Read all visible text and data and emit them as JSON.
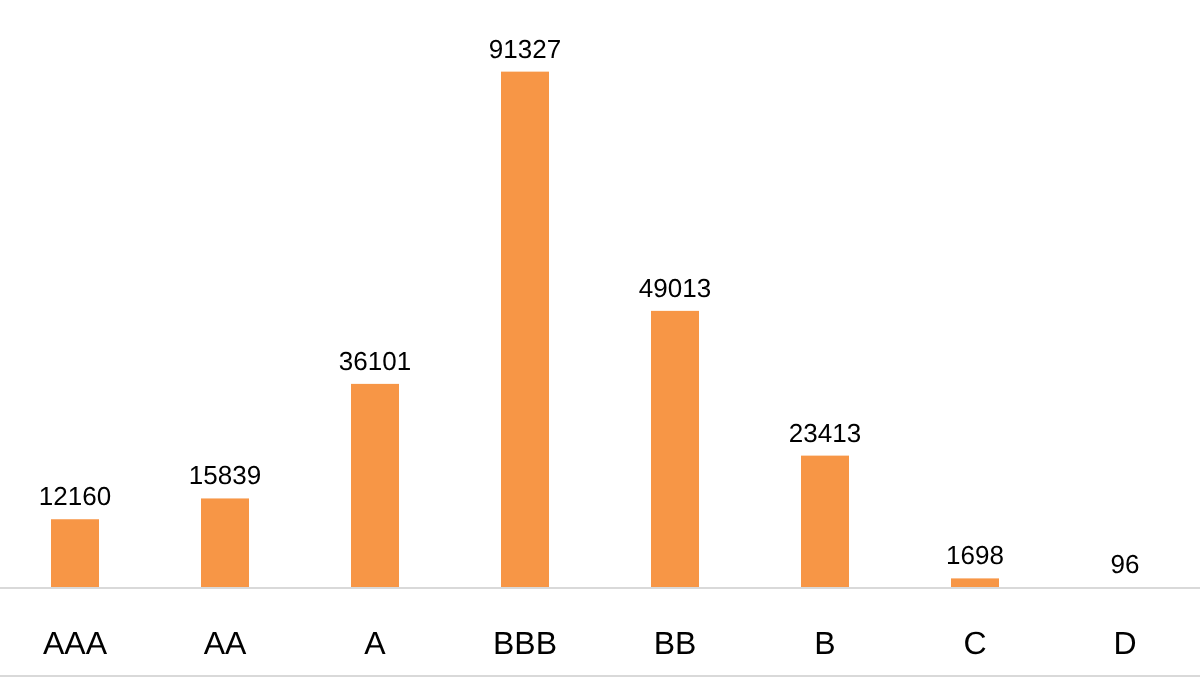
{
  "chart_data": {
    "type": "bar",
    "categories": [
      "AAA",
      "AA",
      "A",
      "BBB",
      "BB",
      "B",
      "C",
      "D"
    ],
    "values": [
      12160,
      15839,
      36101,
      91327,
      49013,
      23413,
      1698,
      96
    ],
    "color": "#f79646",
    "data_labels": true,
    "grid": false
  }
}
